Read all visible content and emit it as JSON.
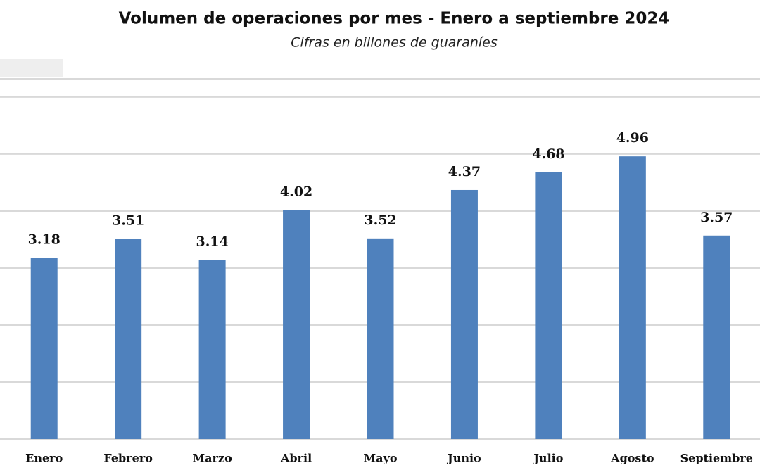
{
  "chart_data": {
    "type": "bar",
    "title": "Volumen de operaciones por mes - Enero a septiembre 2024",
    "subtitle": "Cifras en billones de guaraníes",
    "categories": [
      "Enero",
      "Febrero",
      "Marzo",
      "Abril",
      "Mayo",
      "Junio",
      "Julio",
      "Agosto",
      "Septiembre"
    ],
    "values": [
      3.18,
      3.51,
      3.14,
      4.02,
      3.52,
      4.37,
      4.68,
      4.96,
      3.57
    ],
    "color": "#4f81bd",
    "ylim": [
      0,
      6.32
    ],
    "yticks": [
      0,
      1,
      2,
      3,
      4,
      5,
      6
    ],
    "grid": true
  }
}
